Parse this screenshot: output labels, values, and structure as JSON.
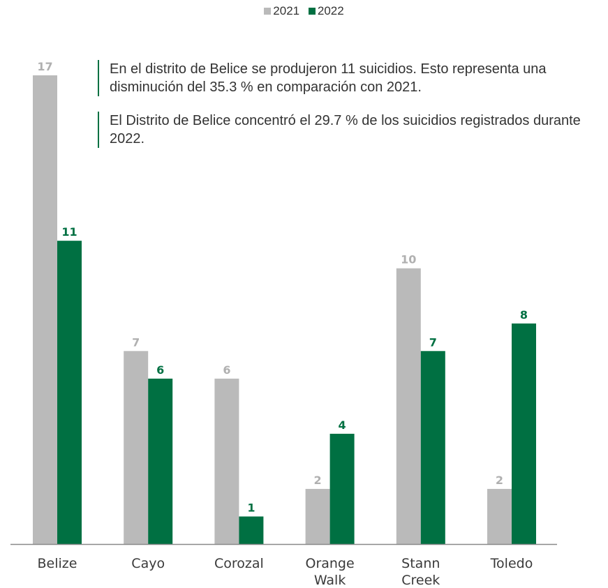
{
  "legend": {
    "item_2021": "2021",
    "item_2022": "2022"
  },
  "notes": {
    "note1": "En el distrito de Belice se produjeron 11 suicidios. Esto representa una disminución del 35.3 % en comparación con 2021.",
    "note2": "El Distrito de Belice concentró el 29.7 % de los suicidios registrados durante 2022."
  },
  "colors": {
    "s2021": "#bababa",
    "s2022": "#007042",
    "axis": "#888888",
    "note_border": "#007042"
  },
  "chart_data": {
    "type": "bar",
    "categories": [
      "Belize",
      "Cayo",
      "Corozal",
      "Orange Walk",
      "Stann Creek",
      "Toledo"
    ],
    "category_lines": [
      [
        "Belize"
      ],
      [
        "Cayo"
      ],
      [
        "Corozal"
      ],
      [
        "Orange",
        "Walk"
      ],
      [
        "Stann",
        "Creek"
      ],
      [
        "Toledo"
      ]
    ],
    "series": [
      {
        "name": "2021",
        "values": [
          17,
          7,
          6,
          2,
          10,
          2
        ]
      },
      {
        "name": "2022",
        "values": [
          11,
          6,
          1,
          4,
          7,
          8
        ]
      }
    ],
    "ylim": [
      0,
      17
    ],
    "legend_position": "top-center",
    "grid": false,
    "data_labels": true
  }
}
